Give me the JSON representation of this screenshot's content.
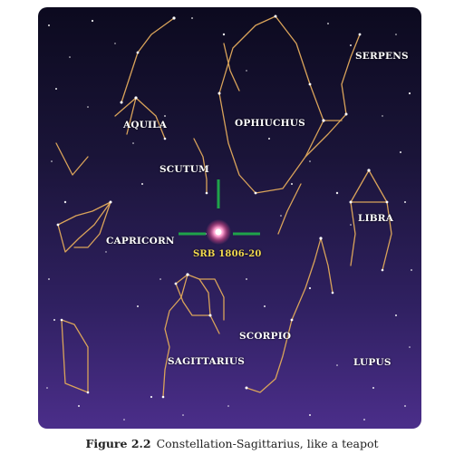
{
  "constellations": {
    "aquila": "AQUILA",
    "ophiuchus": "OPHIUCHUS",
    "serpens": "SERPENS",
    "scutum": "SCUTUM",
    "capricorn": "CAPRICORN",
    "libra": "LIBRA",
    "sagittarius": "SAGITTARIUS",
    "scorpio": "SCORPIO",
    "lupus": "LUPUS"
  },
  "highlighted_star": {
    "name": "SRB 1806-20",
    "marker_color": "#1fa34a",
    "glow_color": "#ff6fb0"
  },
  "colors": {
    "sky_top": "#0c0a1f",
    "sky_bottom": "#4b2e8a",
    "constellation_lines": "#d9a35a",
    "star_label": "#f2d94e"
  },
  "caption": {
    "figure_number": "Figure 2.2",
    "text": "Constellation-Sagittarius, like a teapot"
  }
}
